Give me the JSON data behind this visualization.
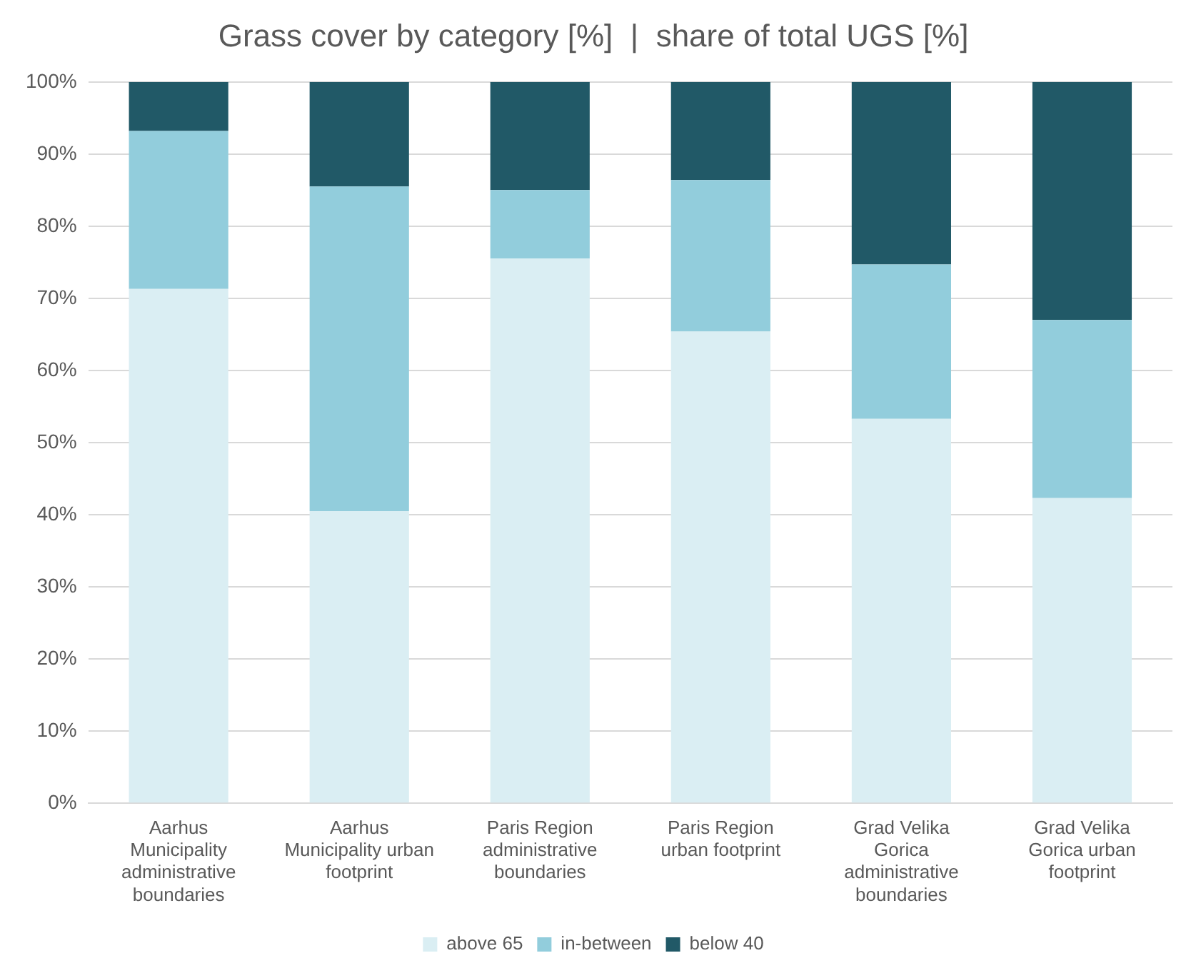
{
  "chart_data": {
    "type": "bar",
    "title": "Grass cover by category [%]  |  share of total UGS [%]",
    "stacked": true,
    "grid": "y",
    "legend": "bottom",
    "categories": [
      "Aarhus Municipality administrative boundaries",
      "Aarhus Municipality urban footprint",
      "Paris Region administrative boundaries",
      "Paris Region urban footprint",
      "Grad Velika Gorica administrative boundaries",
      "Grad Velika Gorica urban footprint"
    ],
    "ylim": [
      0,
      100
    ],
    "yticks": [
      {
        "value": 0,
        "label": "0%"
      },
      {
        "value": 10,
        "label": "10%"
      },
      {
        "value": 20,
        "label": "20%"
      },
      {
        "value": 30,
        "label": "30%"
      },
      {
        "value": 40,
        "label": "40%"
      },
      {
        "value": 50,
        "label": "50%"
      },
      {
        "value": 60,
        "label": "60%"
      },
      {
        "value": 70,
        "label": "70%"
      },
      {
        "value": 80,
        "label": "80%"
      },
      {
        "value": 90,
        "label": "90%"
      },
      {
        "value": 100,
        "label": "100%"
      }
    ],
    "series": [
      {
        "name": "above 65",
        "color": "#daeef3",
        "values": [
          71.3,
          40.5,
          75.5,
          65.4,
          53.3,
          42.3
        ]
      },
      {
        "name": "in-between",
        "color": "#92cddc",
        "values": [
          21.9,
          45,
          9.5,
          21,
          21.4,
          24.7
        ]
      },
      {
        "name": "below 40",
        "color": "#215967",
        "values": [
          6.8,
          14.5,
          15,
          13.6,
          25.3,
          33
        ]
      }
    ]
  }
}
